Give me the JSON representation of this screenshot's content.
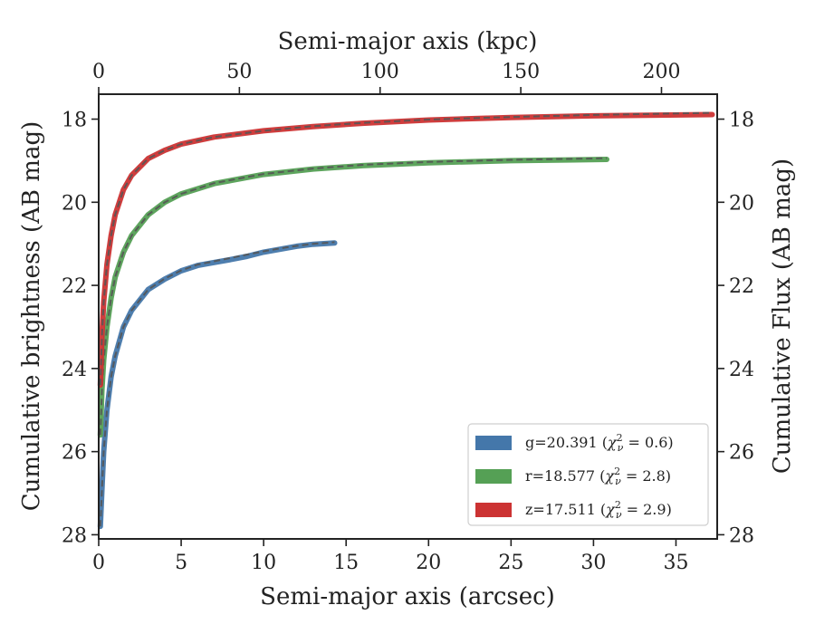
{
  "chart_data": {
    "type": "line",
    "xlabel": "Semi-major axis (arcsec)",
    "x2label": "Semi-major axis (kpc)",
    "ylabel": "Cumulative brightness (AB mag)",
    "y2label": "Cumulative Flux (AB mag)",
    "xlim": [
      0,
      37.5
    ],
    "x2lim": [
      0,
      219.8
    ],
    "ylim": [
      28.1,
      17.4
    ],
    "y_inverted": true,
    "xticks": [
      0,
      5,
      10,
      15,
      20,
      25,
      30,
      35
    ],
    "x2ticks": [
      0,
      50,
      100,
      150,
      200
    ],
    "yticks": [
      18,
      20,
      22,
      24,
      26,
      28
    ],
    "grid": false,
    "legend_position": "lower right",
    "series": [
      {
        "name": "g=20.391 ($\\chi^2_\\nu = 0.6$)",
        "label_main": "g=20.391 (",
        "label_var": "χ",
        "label_sup": "2",
        "label_sub": "ν",
        "label_rest": " = 0.6)",
        "color": "#4477aa",
        "x": [
          0.1,
          0.2,
          0.3,
          0.5,
          0.75,
          1,
          1.5,
          2,
          3,
          4,
          5,
          6,
          7,
          8,
          9,
          10,
          11,
          12,
          13,
          14.3
        ],
        "y": [
          27.8,
          26.9,
          26.0,
          25.0,
          24.2,
          23.7,
          23.0,
          22.6,
          22.1,
          21.85,
          21.65,
          21.52,
          21.45,
          21.38,
          21.3,
          21.2,
          21.13,
          21.06,
          21.01,
          20.98
        ],
        "fit_y": [
          27.8,
          26.9,
          26.0,
          25.0,
          24.2,
          23.7,
          23.0,
          22.6,
          22.1,
          21.84,
          21.64,
          21.5,
          21.42,
          21.34,
          21.26,
          21.18,
          21.11,
          21.05,
          21.0,
          20.96
        ]
      },
      {
        "name": "r=18.577 ($\\chi^2_\\nu = 2.8$)",
        "label_main": "r=18.577 (",
        "label_var": "χ",
        "label_sup": "2",
        "label_sub": "ν",
        "label_rest": " = 2.8)",
        "color": "#55a055",
        "x": [
          0.1,
          0.2,
          0.3,
          0.5,
          0.75,
          1,
          1.5,
          2,
          3,
          4,
          5,
          7,
          10,
          13,
          16,
          20,
          25,
          30.8
        ],
        "y": [
          25.6,
          24.5,
          23.8,
          23.0,
          22.3,
          21.8,
          21.2,
          20.8,
          20.3,
          20.0,
          19.8,
          19.55,
          19.33,
          19.2,
          19.12,
          19.05,
          19.0,
          18.97
        ],
        "fit_y": [
          25.6,
          24.5,
          23.8,
          23.0,
          22.3,
          21.8,
          21.2,
          20.8,
          20.3,
          20.0,
          19.8,
          19.54,
          19.32,
          19.19,
          19.1,
          19.03,
          18.98,
          18.94
        ]
      },
      {
        "name": "z=17.511 ($\\chi^2_\\nu = 2.9$)",
        "label_main": "z=17.511 (",
        "label_var": "χ",
        "label_sup": "2",
        "label_sub": "ν",
        "label_rest": " = 2.9)",
        "color": "#cc3333",
        "x": [
          0.1,
          0.2,
          0.3,
          0.5,
          0.75,
          1,
          1.5,
          2,
          3,
          4,
          5,
          7,
          10,
          13,
          16,
          20,
          25,
          30,
          37.2
        ],
        "y": [
          24.4,
          23.2,
          22.4,
          21.5,
          20.8,
          20.3,
          19.7,
          19.35,
          18.95,
          18.75,
          18.6,
          18.43,
          18.28,
          18.18,
          18.1,
          18.02,
          17.96,
          17.92,
          17.89
        ],
        "fit_y": [
          24.4,
          23.2,
          22.4,
          21.5,
          20.8,
          20.3,
          19.7,
          19.35,
          18.95,
          18.75,
          18.6,
          18.43,
          18.28,
          18.17,
          18.09,
          18.01,
          17.95,
          17.9,
          17.85
        ]
      }
    ]
  }
}
